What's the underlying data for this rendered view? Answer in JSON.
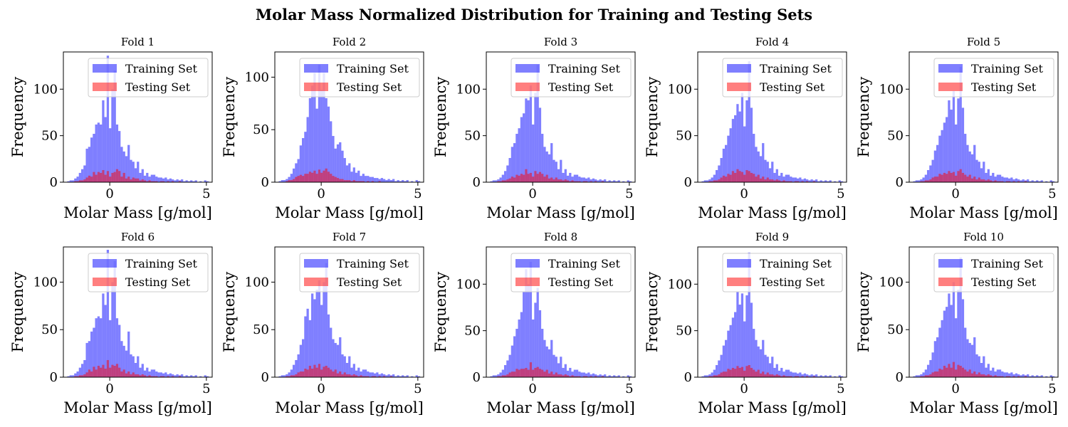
{
  "suptitle": "Molar Mass Normalized Distribution for Training and Testing Sets",
  "colors": {
    "train": "#0000ff",
    "test": "#ff0000",
    "bar_alpha": 0.5
  },
  "chart_data": {
    "type": "bar",
    "xlabel": "Molar Mass [g/mol]",
    "ylabel": "Frequency",
    "xlim": [
      -2.4,
      5.3
    ],
    "xticks": [
      0,
      5
    ],
    "yticks": [
      0,
      50,
      100
    ],
    "legend_placement": "upper-right",
    "bin_start": -2.2,
    "bin_width": 0.12,
    "series_names": [
      "Training Set",
      "Testing Set"
    ],
    "panels": [
      {
        "title": "Fold 1",
        "ylim": [
          0,
          140
        ],
        "train": [
          1,
          2,
          2,
          4,
          6,
          10,
          14,
          18,
          36,
          38,
          48,
          52,
          62,
          64,
          62,
          88,
          70,
          136,
          58,
          100,
          120,
          62,
          55,
          38,
          33,
          28,
          40,
          24,
          22,
          15,
          22,
          10,
          14,
          7,
          10,
          6,
          8,
          8,
          6,
          5,
          5,
          4,
          5,
          3,
          4,
          3,
          2,
          3,
          2,
          3,
          1,
          2,
          1,
          2,
          1,
          2,
          0,
          1,
          0,
          2,
          1
        ],
        "test": [
          0,
          0,
          0,
          1,
          1,
          2,
          2,
          3,
          5,
          7,
          6,
          11,
          8,
          11,
          10,
          13,
          8,
          12,
          6,
          10,
          11,
          14,
          12,
          6,
          10,
          4,
          6,
          3,
          5,
          4,
          4,
          2,
          3,
          2,
          1,
          2,
          1,
          1,
          1,
          0,
          1,
          1,
          0,
          1,
          0,
          1,
          0,
          0,
          1,
          0,
          0,
          0,
          0,
          0,
          0,
          0,
          0,
          0,
          0,
          0,
          0
        ]
      },
      {
        "title": "Fold 2",
        "ylim": [
          0,
          124
        ],
        "train": [
          1,
          2,
          2,
          3,
          5,
          8,
          13,
          18,
          22,
          35,
          42,
          48,
          62,
          80,
          92,
          104,
          70,
          112,
          88,
          104,
          80,
          72,
          58,
          44,
          32,
          36,
          38,
          30,
          23,
          16,
          18,
          10,
          14,
          9,
          11,
          6,
          8,
          6,
          6,
          5,
          5,
          4,
          4,
          3,
          4,
          3,
          2,
          3,
          2,
          3,
          1,
          2,
          1,
          2,
          1,
          2,
          0,
          1,
          0,
          2,
          1
        ],
        "test": [
          0,
          0,
          0,
          1,
          2,
          2,
          3,
          5,
          6,
          7,
          6,
          8,
          8,
          10,
          9,
          11,
          8,
          12,
          9,
          11,
          13,
          10,
          8,
          6,
          5,
          4,
          3,
          3,
          2,
          2,
          2,
          1,
          2,
          1,
          1,
          1,
          1,
          0,
          1,
          0,
          1,
          0,
          0,
          1,
          0,
          0,
          0,
          0,
          0,
          0,
          0,
          0,
          0,
          0,
          0,
          0,
          0,
          0,
          0,
          0,
          0
        ]
      },
      {
        "title": "Fold 3",
        "ylim": [
          0,
          140
        ],
        "train": [
          1,
          2,
          2,
          3,
          5,
          8,
          12,
          18,
          26,
          38,
          42,
          52,
          58,
          70,
          74,
          90,
          88,
          104,
          62,
          96,
          126,
          80,
          52,
          38,
          33,
          30,
          42,
          24,
          22,
          14,
          24,
          10,
          14,
          7,
          10,
          6,
          8,
          8,
          6,
          5,
          5,
          4,
          5,
          3,
          4,
          3,
          2,
          3,
          2,
          3,
          1,
          2,
          1,
          2,
          1,
          2,
          0,
          1,
          0,
          2,
          1
        ],
        "test": [
          0,
          0,
          0,
          1,
          1,
          2,
          2,
          3,
          4,
          6,
          5,
          8,
          7,
          9,
          8,
          14,
          9,
          10,
          6,
          12,
          9,
          11,
          9,
          6,
          8,
          4,
          5,
          3,
          5,
          3,
          3,
          2,
          3,
          2,
          1,
          2,
          1,
          1,
          1,
          0,
          1,
          1,
          0,
          1,
          0,
          1,
          0,
          0,
          1,
          0,
          0,
          0,
          0,
          0,
          0,
          0,
          0,
          0,
          0,
          0,
          0
        ]
      },
      {
        "title": "Fold 4",
        "ylim": [
          0,
          140
        ],
        "train": [
          1,
          2,
          2,
          3,
          5,
          8,
          13,
          18,
          26,
          36,
          40,
          50,
          58,
          68,
          72,
          84,
          76,
          96,
          60,
          88,
          130,
          80,
          52,
          38,
          33,
          28,
          42,
          24,
          22,
          15,
          22,
          10,
          14,
          7,
          10,
          6,
          8,
          8,
          6,
          5,
          5,
          4,
          5,
          3,
          4,
          3,
          2,
          3,
          2,
          3,
          1,
          2,
          1,
          2,
          1,
          2,
          0,
          1,
          0,
          2,
          1
        ],
        "test": [
          0,
          0,
          0,
          1,
          1,
          2,
          2,
          3,
          5,
          7,
          6,
          9,
          8,
          12,
          10,
          14,
          12,
          11,
          8,
          13,
          12,
          10,
          9,
          6,
          8,
          4,
          6,
          3,
          5,
          3,
          3,
          2,
          3,
          2,
          1,
          2,
          1,
          1,
          1,
          0,
          1,
          1,
          0,
          1,
          0,
          1,
          0,
          0,
          1,
          0,
          0,
          0,
          0,
          0,
          0,
          0,
          0,
          0,
          0,
          0,
          0
        ]
      },
      {
        "title": "Fold 5",
        "ylim": [
          0,
          140
        ],
        "train": [
          1,
          2,
          2,
          3,
          5,
          8,
          13,
          18,
          24,
          34,
          40,
          50,
          56,
          64,
          70,
          88,
          78,
          98,
          62,
          90,
          124,
          80,
          52,
          40,
          33,
          30,
          40,
          24,
          22,
          15,
          22,
          10,
          14,
          7,
          10,
          6,
          8,
          8,
          6,
          5,
          5,
          4,
          5,
          3,
          4,
          3,
          2,
          3,
          2,
          3,
          1,
          2,
          1,
          2,
          1,
          2,
          0,
          1,
          0,
          2,
          1
        ],
        "test": [
          0,
          0,
          0,
          1,
          1,
          2,
          2,
          3,
          5,
          6,
          6,
          9,
          8,
          10,
          9,
          12,
          10,
          11,
          7,
          12,
          14,
          10,
          8,
          6,
          8,
          4,
          6,
          3,
          5,
          3,
          3,
          2,
          3,
          2,
          1,
          2,
          1,
          1,
          1,
          0,
          1,
          1,
          0,
          1,
          0,
          1,
          0,
          0,
          1,
          0,
          0,
          0,
          0,
          0,
          0,
          0,
          0,
          0,
          0,
          0,
          0
        ]
      },
      {
        "title": "Fold 6",
        "ylim": [
          0,
          137
        ],
        "train": [
          1,
          2,
          2,
          4,
          6,
          10,
          14,
          18,
          36,
          38,
          48,
          52,
          62,
          64,
          62,
          88,
          76,
          134,
          60,
          100,
          122,
          62,
          55,
          38,
          33,
          28,
          48,
          24,
          22,
          15,
          22,
          10,
          14,
          7,
          10,
          6,
          8,
          8,
          6,
          5,
          5,
          4,
          5,
          3,
          4,
          3,
          2,
          3,
          2,
          3,
          1,
          2,
          1,
          2,
          1,
          2,
          0,
          1,
          0,
          2,
          1
        ],
        "test": [
          0,
          0,
          0,
          1,
          1,
          2,
          2,
          3,
          5,
          8,
          6,
          11,
          8,
          12,
          10,
          13,
          9,
          18,
          10,
          13,
          12,
          14,
          10,
          6,
          8,
          4,
          6,
          3,
          5,
          3,
          3,
          2,
          3,
          2,
          1,
          2,
          1,
          1,
          1,
          0,
          1,
          1,
          0,
          1,
          0,
          1,
          0,
          0,
          1,
          0,
          0,
          0,
          0,
          0,
          0,
          0,
          0,
          0,
          0,
          0,
          0
        ]
      },
      {
        "title": "Fold 7",
        "ylim": [
          0,
          137
        ],
        "train": [
          1,
          2,
          2,
          3,
          5,
          8,
          13,
          18,
          24,
          34,
          40,
          64,
          72,
          60,
          88,
          82,
          92,
          102,
          76,
          100,
          120,
          66,
          52,
          40,
          36,
          34,
          42,
          24,
          22,
          15,
          22,
          10,
          14,
          7,
          10,
          6,
          8,
          8,
          6,
          5,
          5,
          4,
          5,
          3,
          4,
          3,
          2,
          3,
          2,
          3,
          1,
          2,
          1,
          2,
          1,
          2,
          0,
          1,
          0,
          2,
          1
        ],
        "test": [
          0,
          0,
          0,
          1,
          1,
          2,
          2,
          3,
          5,
          6,
          6,
          9,
          8,
          12,
          9,
          13,
          10,
          14,
          8,
          11,
          12,
          10,
          8,
          6,
          8,
          4,
          6,
          3,
          5,
          3,
          3,
          2,
          3,
          2,
          1,
          2,
          1,
          1,
          1,
          0,
          1,
          1,
          0,
          1,
          0,
          1,
          0,
          0,
          1,
          0,
          0,
          0,
          0,
          0,
          0,
          0,
          0,
          0,
          0,
          0,
          0
        ]
      },
      {
        "title": "Fold 8",
        "ylim": [
          0,
          140
        ],
        "train": [
          1,
          2,
          2,
          3,
          5,
          8,
          13,
          18,
          24,
          34,
          44,
          52,
          62,
          70,
          92,
          116,
          100,
          124,
          62,
          80,
          96,
          72,
          52,
          40,
          33,
          30,
          40,
          24,
          22,
          15,
          22,
          10,
          14,
          7,
          10,
          6,
          8,
          8,
          6,
          5,
          5,
          4,
          5,
          3,
          4,
          3,
          2,
          3,
          2,
          3,
          1,
          2,
          1,
          2,
          1,
          2,
          0,
          1,
          0,
          2,
          1
        ],
        "test": [
          0,
          0,
          0,
          1,
          1,
          2,
          2,
          3,
          5,
          6,
          6,
          9,
          8,
          9,
          9,
          10,
          8,
          16,
          8,
          10,
          11,
          9,
          8,
          6,
          8,
          4,
          6,
          3,
          5,
          3,
          3,
          2,
          3,
          2,
          1,
          2,
          1,
          1,
          1,
          0,
          1,
          1,
          0,
          1,
          0,
          1,
          0,
          0,
          1,
          0,
          0,
          0,
          0,
          0,
          0,
          0,
          0,
          0,
          0,
          0,
          0
        ]
      },
      {
        "title": "Fold 9",
        "ylim": [
          0,
          140
        ],
        "train": [
          1,
          2,
          2,
          3,
          5,
          8,
          13,
          18,
          24,
          34,
          40,
          50,
          56,
          64,
          70,
          92,
          78,
          90,
          60,
          88,
          134,
          80,
          52,
          40,
          33,
          30,
          40,
          24,
          22,
          15,
          22,
          10,
          14,
          7,
          10,
          6,
          8,
          8,
          6,
          5,
          5,
          4,
          5,
          3,
          4,
          3,
          2,
          3,
          2,
          3,
          1,
          2,
          1,
          2,
          1,
          2,
          0,
          1,
          0,
          2,
          1
        ],
        "test": [
          0,
          0,
          0,
          1,
          1,
          2,
          2,
          3,
          5,
          6,
          6,
          9,
          8,
          10,
          9,
          12,
          10,
          11,
          7,
          12,
          13,
          10,
          8,
          6,
          8,
          4,
          6,
          3,
          5,
          3,
          3,
          2,
          3,
          2,
          1,
          2,
          1,
          1,
          1,
          0,
          1,
          1,
          0,
          1,
          0,
          1,
          0,
          0,
          1,
          0,
          0,
          0,
          0,
          0,
          0,
          0,
          0,
          0,
          0,
          0,
          0
        ]
      },
      {
        "title": "Fold 10",
        "ylim": [
          0,
          137
        ],
        "train": [
          1,
          2,
          2,
          3,
          5,
          8,
          13,
          18,
          26,
          38,
          42,
          52,
          60,
          70,
          74,
          88,
          76,
          100,
          62,
          92,
          126,
          82,
          52,
          40,
          36,
          34,
          42,
          24,
          22,
          15,
          22,
          10,
          14,
          7,
          10,
          6,
          8,
          8,
          6,
          5,
          5,
          4,
          5,
          3,
          4,
          3,
          2,
          3,
          2,
          3,
          1,
          2,
          1,
          2,
          1,
          2,
          0,
          1,
          0,
          2,
          1
        ],
        "test": [
          0,
          0,
          0,
          1,
          1,
          2,
          2,
          3,
          5,
          6,
          6,
          9,
          8,
          12,
          10,
          14,
          10,
          16,
          8,
          13,
          12,
          10,
          8,
          6,
          8,
          4,
          6,
          3,
          5,
          3,
          3,
          2,
          3,
          2,
          1,
          2,
          1,
          1,
          1,
          0,
          1,
          1,
          0,
          1,
          0,
          1,
          0,
          0,
          1,
          0,
          0,
          0,
          0,
          0,
          0,
          0,
          0,
          0,
          0,
          0,
          0
        ]
      }
    ]
  }
}
